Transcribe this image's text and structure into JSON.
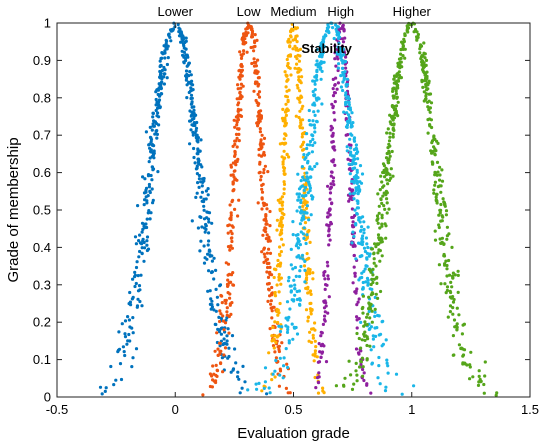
{
  "chart_data": {
    "type": "scatter",
    "xlabel": "Evaluation grade",
    "ylabel": "Grade of membership",
    "xlim": [
      -0.5,
      1.5
    ],
    "ylim": [
      0,
      1
    ],
    "xticks": [
      "-0.5",
      "0",
      "0.5",
      "1",
      "1.5"
    ],
    "yticks": [
      "0",
      "0.1",
      "0.2",
      "0.3",
      "0.4",
      "0.5",
      "0.6",
      "0.7",
      "0.8",
      "0.9",
      "1"
    ],
    "grid": false,
    "legend": "none",
    "annotations": [
      {
        "text": "Lower",
        "x": 0.0,
        "y": 1.0
      },
      {
        "text": "Low",
        "x": 0.31,
        "y": 1.0
      },
      {
        "text": "Medium",
        "x": 0.5,
        "y": 1.0
      },
      {
        "text": "High",
        "x": 0.7,
        "y": 1.0
      },
      {
        "text": "Higher",
        "x": 1.0,
        "y": 1.0
      },
      {
        "text": "Stability",
        "x": 0.64,
        "y": 0.93
      }
    ],
    "series": [
      {
        "center": 0.0,
        "sigma": 0.105,
        "spread": 0.1,
        "color": "#0072BD",
        "points": 520
      },
      {
        "center": 0.31,
        "sigma": 0.058,
        "spread": 0.1,
        "color": "#EE5511",
        "points": 420
      },
      {
        "center": 0.5,
        "sigma": 0.042,
        "spread": 0.09,
        "color": "#FFB000",
        "points": 340
      },
      {
        "center": 0.7,
        "sigma": 0.04,
        "spread": 0.03,
        "color": "#8E1F9E",
        "points": 260
      },
      {
        "center": 0.66,
        "sigma": 0.1,
        "spread": 0.12,
        "color": "#1AB6E8",
        "points": 540
      },
      {
        "center": 1.0,
        "sigma": 0.105,
        "spread": 0.09,
        "color": "#55A51A",
        "points": 520
      }
    ]
  }
}
